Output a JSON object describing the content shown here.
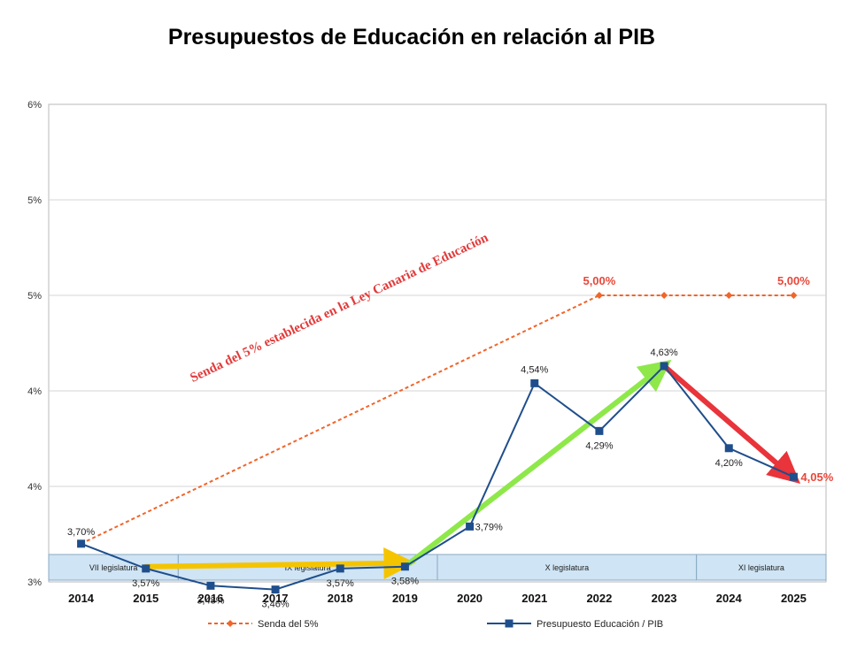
{
  "chart_data": {
    "type": "line",
    "title": "Presupuestos de Educación en relación al PIB",
    "x": [
      "2014",
      "2015",
      "2016",
      "2017",
      "2018",
      "2019",
      "2020",
      "2021",
      "2022",
      "2023",
      "2024",
      "2025"
    ],
    "y_ticks": [
      "6%",
      "5%",
      "5%",
      "4%",
      "4%",
      "3%"
    ],
    "y_tick_values": [
      6.0,
      5.5,
      5.0,
      4.5,
      4.0,
      3.5
    ],
    "ylim": [
      3.5,
      6.0
    ],
    "grid": true,
    "legend_position": "bottom",
    "series": [
      {
        "name": "Senda del 5%",
        "color": "#f0652a",
        "style": "dashed",
        "marker": "diamond",
        "x": [
          "2014",
          "2022",
          "2023",
          "2024",
          "2025"
        ],
        "values": [
          3.7,
          5.0,
          5.0,
          5.0,
          5.0
        ],
        "point_labels": [
          "",
          "5,00%",
          "",
          "",
          "5,00%"
        ]
      },
      {
        "name": "Presupuesto Educación / PIB",
        "color": "#1f4e8c",
        "style": "solid",
        "marker": "square",
        "x": [
          "2014",
          "2015",
          "2016",
          "2017",
          "2018",
          "2019",
          "2020",
          "2021",
          "2022",
          "2023",
          "2024",
          "2025"
        ],
        "values": [
          3.7,
          3.57,
          3.48,
          3.46,
          3.57,
          3.58,
          3.79,
          4.54,
          4.29,
          4.63,
          4.2,
          4.05
        ],
        "point_labels": [
          "3,70%",
          "3,57%",
          "3,48%",
          "3,46%",
          "3,57%",
          "3,58%",
          "3,79%",
          "4,54%",
          "4,29%",
          "4,63%",
          "4,20%",
          "4,05%"
        ]
      }
    ],
    "annotations": [
      {
        "text": "Senda del 5% establecida en la Ley Canaria de Educación",
        "color": "#e23b3b"
      }
    ],
    "trend_arrows": [
      {
        "from": "2015",
        "to": "2019",
        "color": "#f5c400",
        "y_from": 3.58,
        "y_to": 3.58
      },
      {
        "from": "2019",
        "to": "2023",
        "color": "#8ee84a",
        "y_from": 3.58,
        "y_to": 4.63
      },
      {
        "from": "2023",
        "to": "2025",
        "color": "#e8343a",
        "y_from": 4.63,
        "y_to": 4.05
      }
    ],
    "legislaturas": [
      {
        "label": "VII legislatura",
        "from": "2014",
        "to": "2015"
      },
      {
        "label": "IX legislatura",
        "from": "2016",
        "to": "2019"
      },
      {
        "label": "X legislatura",
        "from": "2020",
        "to": "2023"
      },
      {
        "label": "XI legislatura",
        "from": "2024",
        "to": "2025"
      }
    ]
  }
}
